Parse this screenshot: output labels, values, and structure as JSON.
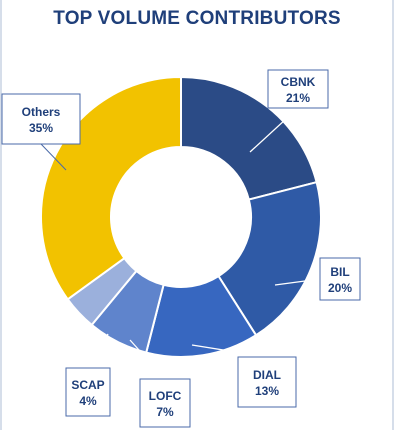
{
  "chart_data": {
    "type": "pie",
    "variant": "doughnut",
    "title": "TOP VOLUME CONTRIBUTORS",
    "slices": [
      {
        "name": "CBNK",
        "value": 21,
        "label": "21%",
        "color": "#2b4b86"
      },
      {
        "name": "BIL",
        "value": 20,
        "label": "20%",
        "color": "#2f5aa6"
      },
      {
        "name": "DIAL",
        "value": 13,
        "label": "13%",
        "color": "#3767c0"
      },
      {
        "name": "LOFC",
        "value": 7,
        "label": "7%",
        "color": "#5f84cc"
      },
      {
        "name": "SCAP",
        "value": 4,
        "label": "4%",
        "color": "#9bb0dc"
      },
      {
        "name": "Others",
        "value": 35,
        "label": "35%",
        "color": "#f2c200"
      }
    ]
  }
}
